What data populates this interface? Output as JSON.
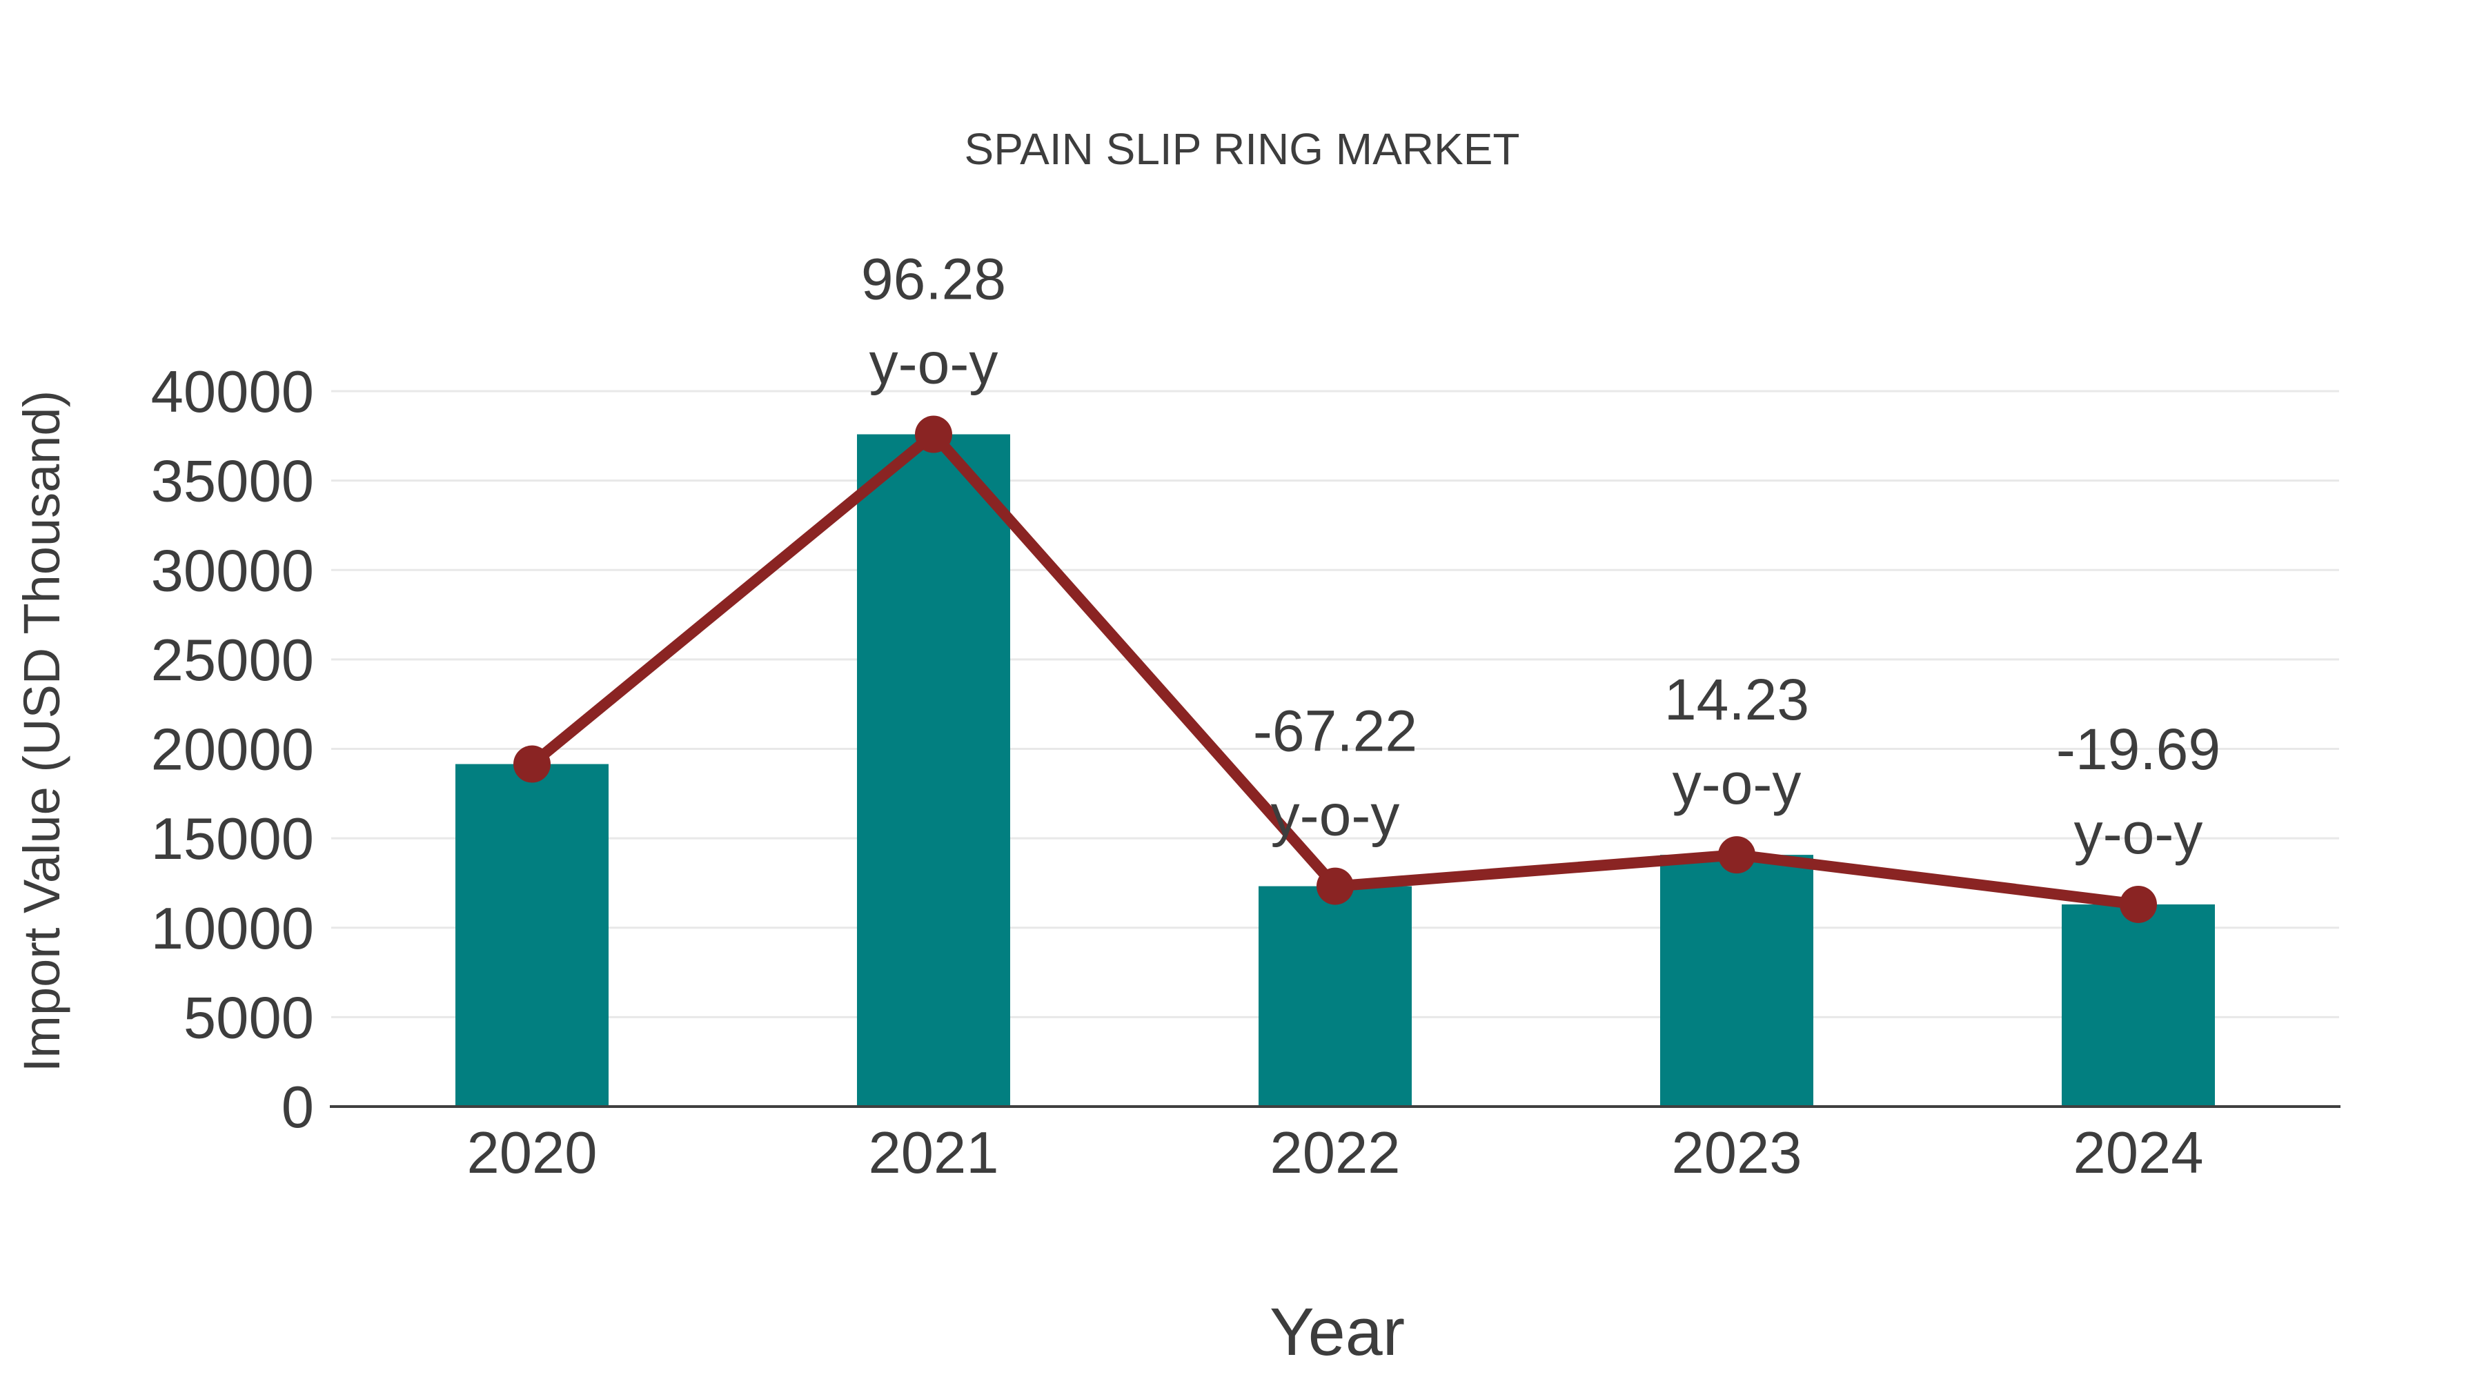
{
  "chart_data": {
    "type": "bar",
    "title": "SPAIN SLIP RING MARKET",
    "xlabel": "Year",
    "ylabel": "Import Value (USD Thousand)",
    "categories": [
      "2020",
      "2021",
      "2022",
      "2023",
      "2024"
    ],
    "series": [
      {
        "name": "Import Value (USD Thousand)",
        "type": "bar",
        "color": "#027f80",
        "values": [
          19150,
          37588,
          12321,
          14074,
          11303
        ]
      },
      {
        "name": "y-o-y",
        "type": "line",
        "color": "#8a2423",
        "values": [
          null,
          96.28,
          -67.22,
          14.23,
          -19.69
        ],
        "markers": true,
        "plotted_at_bar_tops": true
      }
    ],
    "annotations": [
      {
        "category": "2021",
        "line1": "96.28",
        "line2": "y-o-y"
      },
      {
        "category": "2022",
        "line1": "-67.22",
        "line2": "y-o-y"
      },
      {
        "category": "2023",
        "line1": "14.23",
        "line2": "y-o-y"
      },
      {
        "category": "2024",
        "line1": "-19.69",
        "line2": "y-o-y"
      }
    ],
    "y_axis": {
      "min": 0,
      "max": 40000,
      "step": 5000,
      "tick_labels": [
        "0",
        "5000",
        "10000",
        "15000",
        "20000",
        "25000",
        "30000",
        "35000",
        "40000"
      ]
    },
    "grid": "horizontal",
    "legend": "none",
    "colors": {
      "bar": "#027f80",
      "line": "#8a2423",
      "text": "#3d3d3d",
      "gridline": "#e8e8e8",
      "axis": "#3f3f3f",
      "background": "#ffffff"
    }
  }
}
